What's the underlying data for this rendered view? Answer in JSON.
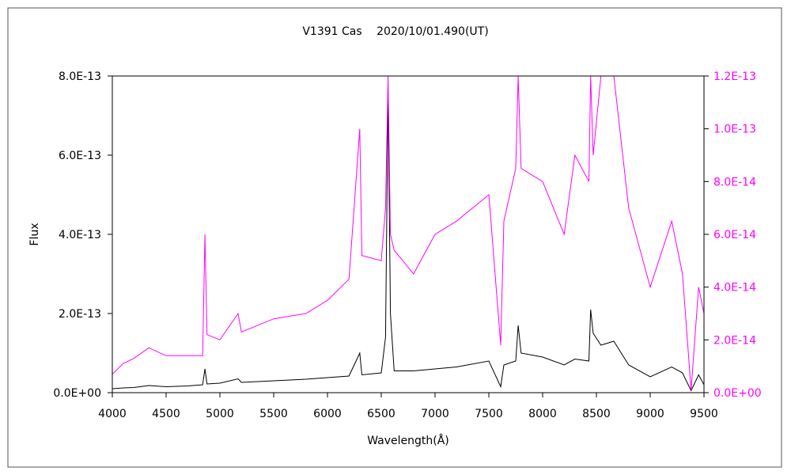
{
  "chart_data": {
    "type": "line",
    "title": "V1391 Cas　 2020/10/01.490(UT)",
    "xlabel": "Wavelength(Å)",
    "ylabel": "Flux",
    "y2label": "",
    "xlim": [
      4000,
      9500
    ],
    "ylim": [
      0,
      8e-13
    ],
    "y2lim": [
      0,
      1.2e-13
    ],
    "grid": false,
    "legend": "none",
    "x_ticks": [
      "4000",
      "4500",
      "5000",
      "5500",
      "6000",
      "6500",
      "7000",
      "7500",
      "8000",
      "8500",
      "9000",
      "9500"
    ],
    "y_ticks": [
      "0.0E+00",
      "2.0E-13",
      "4.0E-13",
      "6.0E-13",
      "8.0E-13"
    ],
    "y2_ticks": [
      "0.0E+00",
      "2.0E-14",
      "4.0E-14",
      "6.0E-14",
      "8.0E-14",
      "1.0E-13",
      "1.2E-13"
    ],
    "colors": {
      "primary": "#000000",
      "secondary": "#ff00ff",
      "frame": "#555555"
    },
    "series": [
      {
        "axis": "left",
        "color": "#000000",
        "points": [
          [
            4000,
            1e-14
          ],
          [
            4100,
            1.2e-14
          ],
          [
            4200,
            1.3e-14
          ],
          [
            4340,
            1.8e-14
          ],
          [
            4500,
            1.5e-14
          ],
          [
            4700,
            1.7e-14
          ],
          [
            4840,
            2e-14
          ],
          [
            4861,
            6e-14
          ],
          [
            4880,
            2.2e-14
          ],
          [
            5000,
            2.4e-14
          ],
          [
            5169,
            3.5e-14
          ],
          [
            5200,
            2.6e-14
          ],
          [
            5500,
            3e-14
          ],
          [
            5800,
            3.4e-14
          ],
          [
            6000,
            3.8e-14
          ],
          [
            6200,
            4.2e-14
          ],
          [
            6300,
            1e-13
          ],
          [
            6320,
            4.5e-14
          ],
          [
            6500,
            5e-14
          ],
          [
            6540,
            1.4e-13
          ],
          [
            6563,
            7.6e-13
          ],
          [
            6585,
            2e-13
          ],
          [
            6620,
            5.5e-14
          ],
          [
            6800,
            5.5e-14
          ],
          [
            7000,
            6e-14
          ],
          [
            7200,
            6.5e-14
          ],
          [
            7500,
            8e-14
          ],
          [
            7610,
            1.5e-14
          ],
          [
            7640,
            7e-14
          ],
          [
            7750,
            8e-14
          ],
          [
            7773,
            1.7e-13
          ],
          [
            7800,
            1e-13
          ],
          [
            8000,
            9e-14
          ],
          [
            8200,
            7e-14
          ],
          [
            8300,
            8.5e-14
          ],
          [
            8430,
            8e-14
          ],
          [
            8446,
            2.1e-13
          ],
          [
            8470,
            1.5e-13
          ],
          [
            8542,
            1.2e-13
          ],
          [
            8662,
            1.3e-13
          ],
          [
            8800,
            7e-14
          ],
          [
            9000,
            4e-14
          ],
          [
            9200,
            6.5e-14
          ],
          [
            9300,
            5e-14
          ],
          [
            9380,
            5e-15
          ],
          [
            9450,
            4.5e-14
          ],
          [
            9500,
            2e-14
          ]
        ]
      },
      {
        "axis": "right",
        "color": "#ff00ff",
        "points": [
          [
            4000,
            7e-15
          ],
          [
            4100,
            1.1e-14
          ],
          [
            4200,
            1.3e-14
          ],
          [
            4340,
            1.7e-14
          ],
          [
            4500,
            1.4e-14
          ],
          [
            4700,
            1.4e-14
          ],
          [
            4840,
            1.4e-14
          ],
          [
            4861,
            6e-14
          ],
          [
            4880,
            2.2e-14
          ],
          [
            5000,
            2e-14
          ],
          [
            5169,
            3e-14
          ],
          [
            5200,
            2.3e-14
          ],
          [
            5500,
            2.8e-14
          ],
          [
            5800,
            3e-14
          ],
          [
            6000,
            3.5e-14
          ],
          [
            6200,
            4.3e-14
          ],
          [
            6300,
            1e-13
          ],
          [
            6320,
            5.2e-14
          ],
          [
            6500,
            5e-14
          ],
          [
            6540,
            7e-14
          ],
          [
            6563,
            1.2e-13
          ],
          [
            6585,
            6e-14
          ],
          [
            6620,
            5.4e-14
          ],
          [
            6800,
            4.5e-14
          ],
          [
            7000,
            6e-14
          ],
          [
            7200,
            6.5e-14
          ],
          [
            7500,
            7.5e-14
          ],
          [
            7610,
            1.8e-14
          ],
          [
            7640,
            6.5e-14
          ],
          [
            7750,
            8.5e-14
          ],
          [
            7773,
            1.2e-13
          ],
          [
            7800,
            8.5e-14
          ],
          [
            8000,
            8e-14
          ],
          [
            8200,
            6e-14
          ],
          [
            8300,
            9e-14
          ],
          [
            8430,
            8e-14
          ],
          [
            8446,
            1.2e-13
          ],
          [
            8470,
            9e-14
          ],
          [
            8542,
            1.2e-13
          ],
          [
            8662,
            1.2e-13
          ],
          [
            8800,
            7e-14
          ],
          [
            9000,
            4e-14
          ],
          [
            9200,
            6.5e-14
          ],
          [
            9300,
            4.5e-14
          ],
          [
            9380,
            1e-15
          ],
          [
            9450,
            4e-14
          ],
          [
            9500,
            3e-14
          ]
        ]
      }
    ]
  }
}
